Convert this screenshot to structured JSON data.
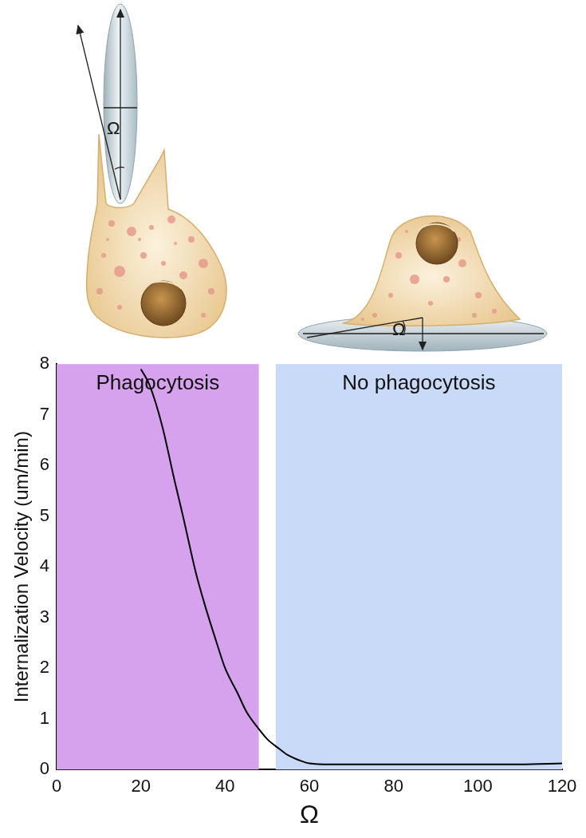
{
  "chart_data": {
    "type": "line",
    "x_label": "Ω",
    "y_label": "Internalization Velocity (um/min)",
    "x": [
      20,
      22,
      25,
      28,
      30,
      33,
      35,
      38,
      40,
      43,
      45,
      48,
      50,
      53,
      55,
      58,
      60,
      65,
      70,
      80,
      90,
      100,
      110,
      120
    ],
    "values": [
      7.9,
      7.6,
      6.8,
      5.7,
      5.0,
      3.9,
      3.3,
      2.5,
      2.0,
      1.5,
      1.15,
      0.8,
      0.6,
      0.4,
      0.28,
      0.17,
      0.12,
      0.1,
      0.1,
      0.1,
      0.1,
      0.1,
      0.1,
      0.12
    ],
    "color": "#000000",
    "xlim": [
      0,
      120
    ],
    "ylim": [
      0,
      8
    ],
    "xticks": [
      0,
      20,
      40,
      60,
      80,
      100,
      120
    ],
    "yticks": [
      0,
      1,
      2,
      3,
      4,
      5,
      6,
      7,
      8
    ],
    "grid": false,
    "annotations": [
      {
        "text": "Phagocytosis",
        "x_range": [
          0,
          48
        ],
        "color": "#d6a2ee"
      },
      {
        "text": "No phagocytosis",
        "x_range": [
          52,
          120
        ],
        "color": "#c9d9f8"
      }
    ]
  },
  "figure": {
    "labels": [
      "Ω",
      "Ω"
    ]
  }
}
